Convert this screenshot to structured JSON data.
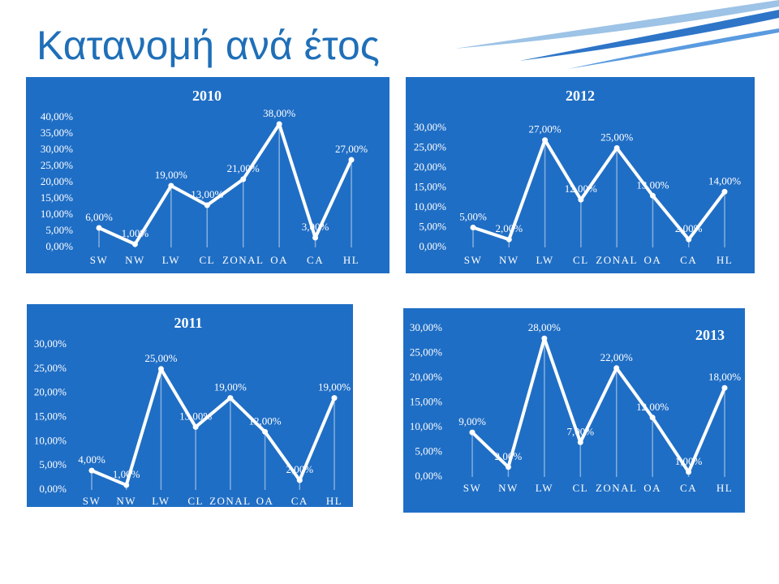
{
  "title": "Κατανομή ανά έτος",
  "chart_data": [
    {
      "type": "line",
      "title": "2010",
      "categories": [
        "SW",
        "NW",
        "LW",
        "CL",
        "ZONAL",
        "OA",
        "CA",
        "HL"
      ],
      "values": [
        6,
        1,
        19,
        13,
        21,
        38,
        3,
        27
      ],
      "value_labels": [
        "6,00%",
        "1,00%",
        "19,00%",
        "13,00%",
        "21,00%",
        "38,00%",
        "3,00%",
        "27,00%"
      ],
      "color": "#ffffff",
      "ylim": [
        0,
        40
      ],
      "yticks": [
        {
          "value": 0,
          "label": "0,00%"
        },
        {
          "value": 5,
          "label": "5,00%"
        },
        {
          "value": 10,
          "label": "10,00%"
        },
        {
          "value": 15,
          "label": "15,00%"
        },
        {
          "value": 20,
          "label": "20,00%"
        },
        {
          "value": 25,
          "label": "25,00%"
        },
        {
          "value": 30,
          "label": "30,00%"
        },
        {
          "value": 35,
          "label": "35,00%"
        },
        {
          "value": 40,
          "label": "40,00%"
        }
      ]
    },
    {
      "type": "line",
      "title": "2012",
      "categories": [
        "SW",
        "NW",
        "LW",
        "CL",
        "ZONAL",
        "OA",
        "CA",
        "HL"
      ],
      "values": [
        5,
        2,
        27,
        12,
        25,
        13,
        2,
        14
      ],
      "value_labels": [
        "5,00%",
        "2,00%",
        "27,00%",
        "12,00%",
        "25,00%",
        "13,00%",
        "2,00%",
        "14,00%"
      ],
      "color": "#ffffff",
      "ylim": [
        0,
        30
      ],
      "yticks": [
        {
          "value": 0,
          "label": "0,00%"
        },
        {
          "value": 5,
          "label": "5,00%"
        },
        {
          "value": 10,
          "label": "10,00%"
        },
        {
          "value": 15,
          "label": "15,00%"
        },
        {
          "value": 20,
          "label": "20,00%"
        },
        {
          "value": 25,
          "label": "25,00%"
        },
        {
          "value": 30,
          "label": "30,00%"
        }
      ]
    },
    {
      "type": "line",
      "title": "2011",
      "categories": [
        "SW",
        "NW",
        "LW",
        "CL",
        "ZONAL",
        "OA",
        "CA",
        "HL"
      ],
      "values": [
        4,
        1,
        25,
        13,
        19,
        12,
        2,
        19
      ],
      "value_labels": [
        "4,00%",
        "1,00%",
        "25,00%",
        "13,00%",
        "19,00%",
        "12,00%",
        "2,00%",
        "19,00%"
      ],
      "color": "#ffffff",
      "ylim": [
        0,
        30
      ],
      "yticks": [
        {
          "value": 0,
          "label": "0,00%"
        },
        {
          "value": 5,
          "label": "5,00%"
        },
        {
          "value": 10,
          "label": "10,00%"
        },
        {
          "value": 15,
          "label": "15,00%"
        },
        {
          "value": 20,
          "label": "20,00%"
        },
        {
          "value": 25,
          "label": "25,00%"
        },
        {
          "value": 30,
          "label": "30,00%"
        }
      ]
    },
    {
      "type": "line",
      "title": "2013",
      "categories": [
        "SW",
        "NW",
        "LW",
        "CL",
        "ZONAL",
        "OA",
        "CA",
        "HL"
      ],
      "values": [
        9,
        2,
        28,
        7,
        22,
        12,
        1,
        18
      ],
      "value_labels": [
        "9,00%",
        "2,00%",
        "28,00%",
        "7,00%",
        "22,00%",
        "12,00%",
        "1,00%",
        "18,00%"
      ],
      "color": "#ffffff",
      "ylim": [
        0,
        30
      ],
      "yticks": [
        {
          "value": 0,
          "label": "0,00%"
        },
        {
          "value": 5,
          "label": "5,00%"
        },
        {
          "value": 10,
          "label": "10,00%"
        },
        {
          "value": 15,
          "label": "15,00%"
        },
        {
          "value": 20,
          "label": "20,00%"
        },
        {
          "value": 25,
          "label": "25,00%"
        },
        {
          "value": 30,
          "label": "30,00%"
        }
      ]
    }
  ]
}
